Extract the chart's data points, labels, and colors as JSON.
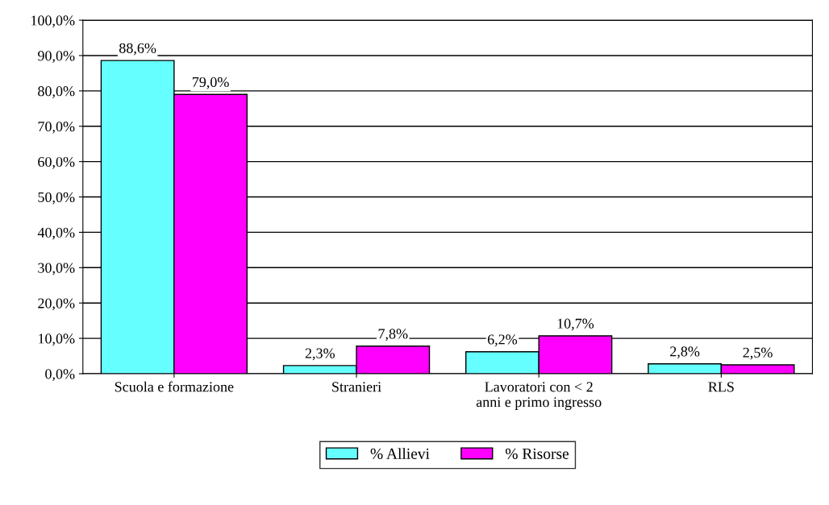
{
  "chart_data": {
    "type": "bar",
    "categories": [
      "Scuola e formazione",
      "Stranieri",
      "Lavoratori con < 2\nanni e primo ingresso",
      "RLS"
    ],
    "series": [
      {
        "name": "% Allievi",
        "color": "#66ffff",
        "values": [
          88.6,
          2.3,
          6.2,
          2.8
        ],
        "value_labels": [
          "88,6%",
          "2,3%",
          "6,2%",
          "2,8%"
        ]
      },
      {
        "name": "% Risorse",
        "color": "#ff00ff",
        "values": [
          79.0,
          7.8,
          10.7,
          2.5
        ],
        "value_labels": [
          "79,0%",
          "7,8%",
          "10,7%",
          "2,5%"
        ]
      }
    ],
    "ylim": [
      0,
      100
    ],
    "yticks": [
      {
        "value": 0,
        "label": "0,0%"
      },
      {
        "value": 10,
        "label": "10,0%"
      },
      {
        "value": 20,
        "label": "20,0%"
      },
      {
        "value": 30,
        "label": "30,0%"
      },
      {
        "value": 40,
        "label": "40,0%"
      },
      {
        "value": 50,
        "label": "50,0%"
      },
      {
        "value": 60,
        "label": "60,0%"
      },
      {
        "value": 70,
        "label": "70,0%"
      },
      {
        "value": 80,
        "label": "80,0%"
      },
      {
        "value": 90,
        "label": "90,0%"
      },
      {
        "value": 100,
        "label": "100,0%"
      }
    ],
    "grid": "y",
    "legend": "bottom"
  }
}
